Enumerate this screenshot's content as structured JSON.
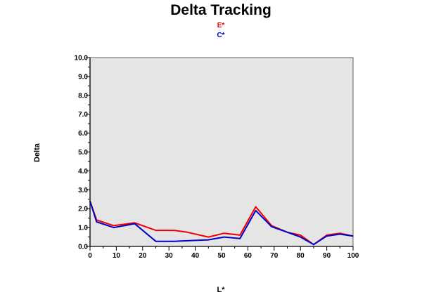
{
  "chart_data": {
    "type": "line",
    "title": "Delta Tracking",
    "xlabel": "L*",
    "ylabel": "Delta",
    "xlim": [
      0,
      100
    ],
    "ylim": [
      0,
      10
    ],
    "x_ticks": [
      0,
      10,
      20,
      30,
      40,
      50,
      60,
      70,
      80,
      90,
      100
    ],
    "y_ticks": [
      "0.0",
      "1.0",
      "2.0",
      "3.0",
      "4.0",
      "5.0",
      "6.0",
      "7.0",
      "8.0",
      "9.0",
      "10.0"
    ],
    "grid": false,
    "legend_placement": "top-center",
    "plot_background": "#e5e5e5",
    "series": [
      {
        "name": "E*",
        "color": "#ee0000",
        "x": [
          0,
          2.5,
          9,
          17,
          25,
          32,
          37,
          45,
          51,
          57,
          63,
          69,
          75,
          80,
          85,
          90,
          95,
          100
        ],
        "y": [
          2.4,
          1.4,
          1.1,
          1.25,
          0.85,
          0.85,
          0.75,
          0.5,
          0.7,
          0.6,
          2.1,
          1.1,
          0.75,
          0.6,
          0.1,
          0.6,
          0.7,
          0.55
        ]
      },
      {
        "name": "C*",
        "color": "#0000cc",
        "x": [
          0,
          2.5,
          9,
          17,
          25,
          32,
          37,
          45,
          51,
          57,
          63,
          69,
          75,
          80,
          85,
          90,
          95,
          100
        ],
        "y": [
          2.4,
          1.3,
          1.0,
          1.2,
          0.27,
          0.27,
          0.3,
          0.35,
          0.5,
          0.42,
          1.9,
          1.05,
          0.75,
          0.5,
          0.1,
          0.55,
          0.65,
          0.55
        ]
      }
    ]
  }
}
